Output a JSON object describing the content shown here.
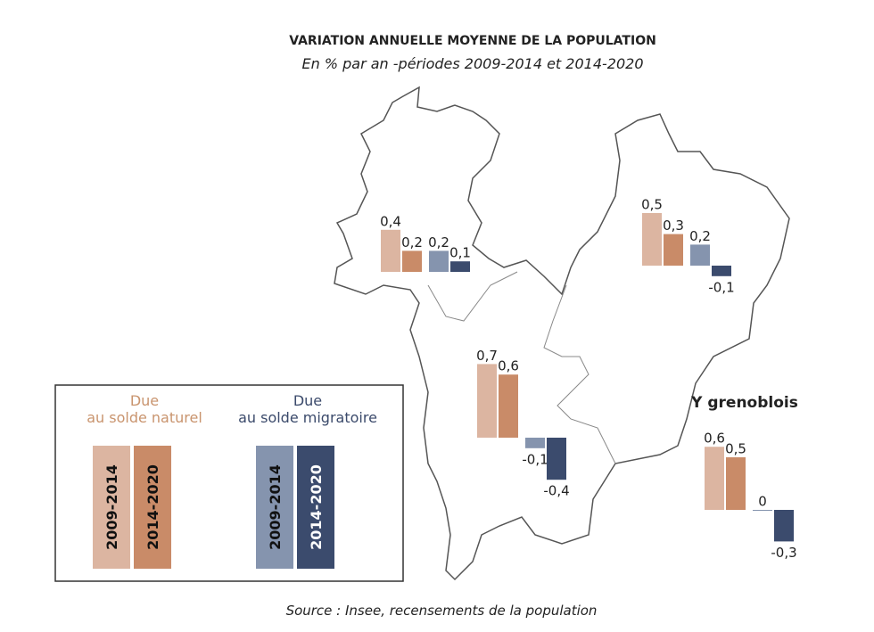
{
  "title": "VARIATION ANNUELLE MOYENNE DE LA POPULATION",
  "subtitle": "En % par an -périodes 2009-2014 et 2014-2020",
  "source": "Source : Insee, recensements de la population",
  "legend": {
    "groups": [
      {
        "title_lines": [
          "Due",
          "au solde naturel"
        ],
        "title_color": "#c9946e",
        "items": [
          {
            "label": "2009-2014",
            "color": "#dcb5a1"
          },
          {
            "label": "2014-2020",
            "color": "#c98b68"
          }
        ]
      },
      {
        "title_lines": [
          "Due",
          "au solde migratoire"
        ],
        "title_color": "#3b4a6b",
        "items": [
          {
            "label": "2009-2014",
            "color": "#8594ae"
          },
          {
            "label": "2014-2020",
            "color": "#3b4b6d"
          }
        ]
      }
    ]
  },
  "zones": [
    {
      "values": [
        0.4,
        0.2,
        0.2,
        0.1
      ],
      "value_labels": [
        "0,4",
        "0,2",
        "0,2",
        "0,1"
      ]
    },
    {
      "values": [
        0.5,
        0.3,
        0.2,
        -0.1
      ],
      "value_labels": [
        "0,5",
        "0,3",
        "0,2",
        "-0,1"
      ]
    },
    {
      "values": [
        0.7,
        0.6,
        -0.1,
        -0.4
      ],
      "value_labels": [
        "0,7",
        "0,6",
        "-0,1",
        "-0,4"
      ]
    },
    {
      "name": "Y grenoblois",
      "values": [
        0.6,
        0.5,
        0,
        -0.3
      ],
      "value_labels": [
        "0,6",
        "0,5",
        "0",
        "-0,3"
      ]
    }
  ]
}
